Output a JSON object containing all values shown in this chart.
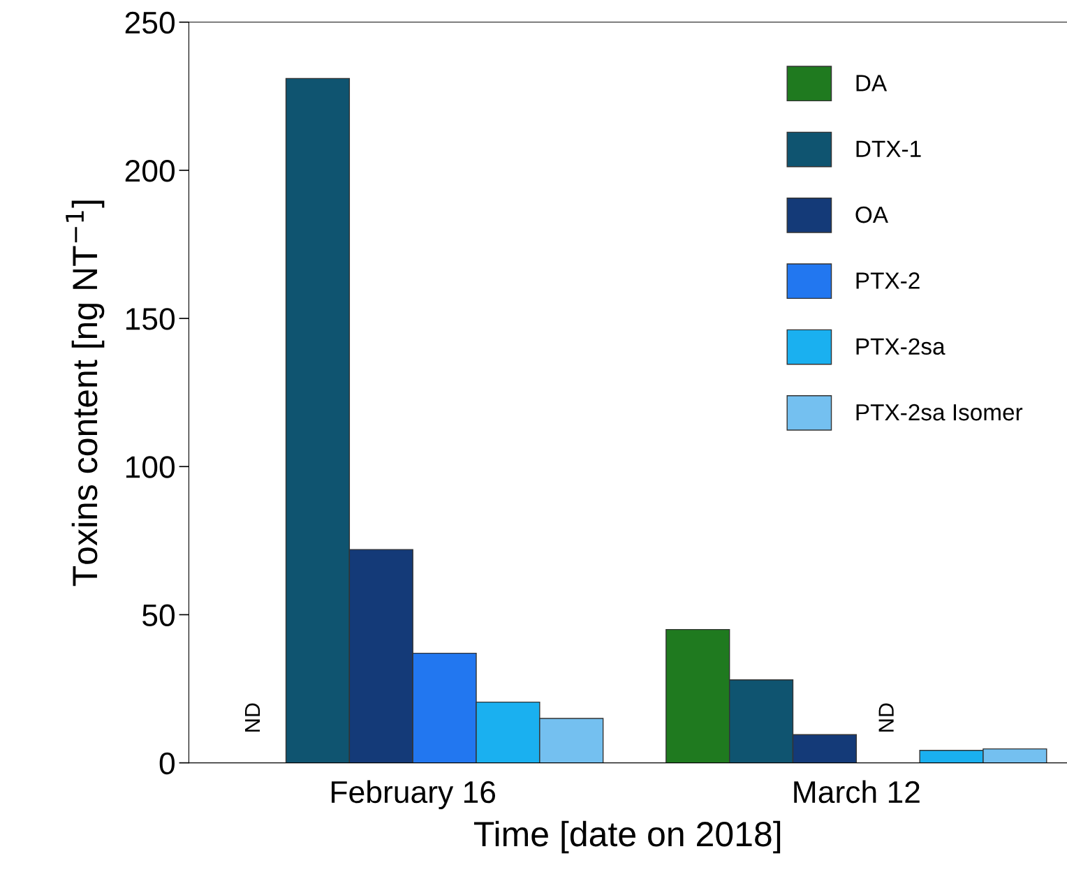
{
  "chart_data": {
    "type": "bar",
    "xlabel": "Time [date on 2018]",
    "ylabel": "Toxins content [ng NT$^{−1}$]",
    "categories": [
      "February 16",
      "March 12"
    ],
    "series": [
      {
        "name": "DA",
        "color": "#1f7a1f",
        "values": [
          null,
          45
        ]
      },
      {
        "name": "DTX-1",
        "color": "#0f5470",
        "values": [
          231,
          28
        ]
      },
      {
        "name": "OA",
        "color": "#143a78",
        "values": [
          72,
          9.5
        ]
      },
      {
        "name": "PTX-2",
        "color": "#2277f0",
        "values": [
          37,
          null
        ]
      },
      {
        "name": "PTX-2sa",
        "color": "#1ab0f0",
        "values": [
          20.5,
          4.2
        ]
      },
      {
        "name": "PTX-2sa Isomer",
        "color": "#74c0f0",
        "values": [
          15,
          4.7
        ]
      }
    ],
    "annotations": [
      "ND",
      "ND"
    ],
    "ylim": [
      0,
      250
    ],
    "yticks": [
      0,
      50,
      100,
      150,
      200,
      250
    ],
    "legend": "top right",
    "grid": false
  }
}
